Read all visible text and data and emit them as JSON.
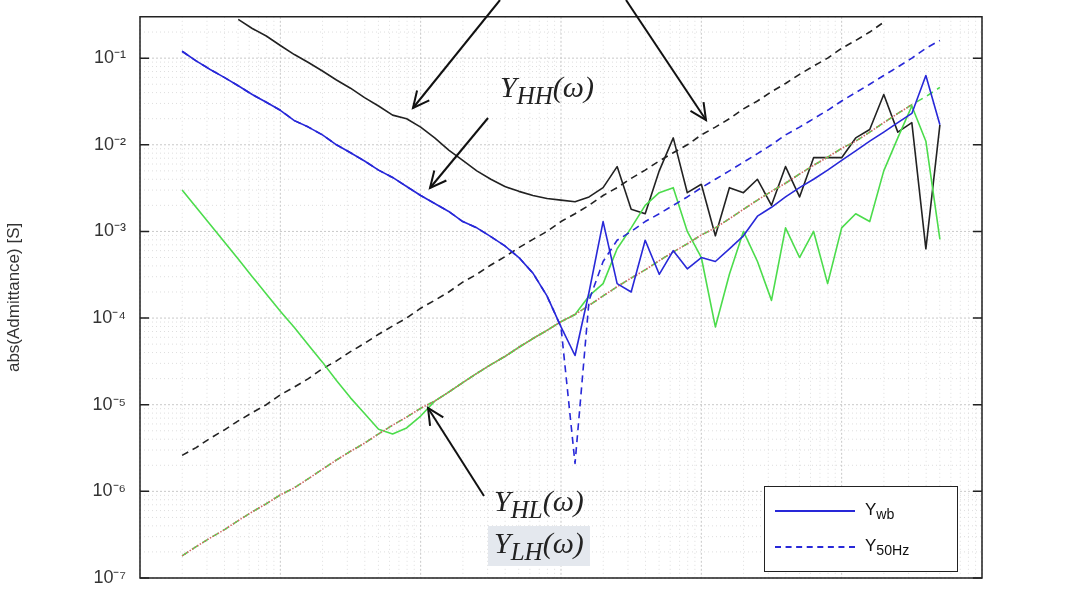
{
  "chart_data": {
    "type": "line",
    "ylabel": "abs(Admittance) [S]",
    "log": "y",
    "grid": true,
    "legend": "bottom right",
    "tick_labels": "y",
    "ylim": [
      1e-07,
      0.3
    ],
    "yticks": [
      {
        "value": 1e-07,
        "label": "10⁻⁷"
      },
      {
        "value": 1e-06,
        "label": "10⁻⁶"
      },
      {
        "value": 1e-05,
        "label": "10⁻⁵"
      },
      {
        "value": 0.0001,
        "label": "10⁻⁴"
      },
      {
        "value": 0.001,
        "label": "10⁻³"
      },
      {
        "value": 0.01,
        "label": "10⁻²"
      },
      {
        "value": 0.1,
        "label": "10⁻¹"
      }
    ],
    "categories": [
      null,
      null,
      null,
      null,
      null,
      null,
      null,
      null,
      null,
      null,
      null,
      null,
      null,
      null,
      null,
      null,
      null,
      null,
      null,
      null,
      null,
      null,
      null,
      null,
      null,
      null,
      null,
      null,
      null,
      null,
      null,
      null,
      null,
      null,
      null,
      null,
      null,
      null,
      null,
      null,
      null,
      null,
      null,
      null,
      null,
      null,
      null,
      null,
      null,
      null,
      null,
      null,
      null,
      null,
      null,
      null,
      null,
      null,
      null,
      null,
      null
    ],
    "annotations": [
      "Y$_{HH}$(ω)",
      "Y$_{HL}$(ω)",
      "Y$_{LH}$(ω)"
    ],
    "series": [
      {
        "color": "#222222",
        "line_style": "dashed",
        "values": [
          null,
          null,
          null,
          2.6e-06,
          3.2e-06,
          4.1e-06,
          5.1e-06,
          6.5e-06,
          8.1e-06,
          1e-05,
          1.3e-05,
          1.6e-05,
          2e-05,
          2.6e-05,
          3.2e-05,
          4.1e-05,
          5.1e-05,
          6.5e-05,
          8.1e-05,
          0.0001,
          0.00013,
          0.00016,
          0.0002,
          0.00026,
          0.00032,
          0.00041,
          0.00051,
          0.00065,
          0.00081,
          0.001,
          0.0013,
          0.0016,
          0.002,
          0.0026,
          0.0032,
          0.0041,
          0.0051,
          0.0065,
          0.0081,
          0.01,
          0.013,
          0.016,
          0.02,
          0.026,
          0.032,
          0.041,
          0.051,
          0.065,
          0.081,
          0.1,
          0.13,
          0.16,
          0.2,
          0.26,
          null,
          null,
          null,
          null,
          null,
          null,
          null
        ]
      },
      {
        "color": "#222222",
        "line_style": "solid",
        "values": [
          null,
          null,
          null,
          null,
          null,
          null,
          null,
          0.28,
          0.22,
          0.18,
          0.14,
          0.11,
          0.089,
          0.071,
          0.056,
          0.045,
          0.035,
          0.028,
          0.022,
          0.02,
          0.016,
          0.012,
          0.0087,
          0.0066,
          0.005,
          0.004,
          0.0033,
          0.0029,
          0.0026,
          0.0024,
          0.0023,
          0.0022,
          0.0025,
          0.0032,
          0.0056,
          0.0018,
          0.0016,
          0.005,
          0.012,
          0.0028,
          0.0035,
          0.00089,
          0.0032,
          0.0028,
          0.004,
          0.002,
          0.0056,
          0.0025,
          0.0071,
          0.0071,
          0.0071,
          0.012,
          0.015,
          0.038,
          0.014,
          0.018,
          0.00063,
          0.017,
          null,
          null,
          null
        ]
      },
      {
        "color": "#4cdc4c",
        "line_style": "solid",
        "values": [
          null,
          null,
          null,
          0.003,
          0.0019,
          0.0012,
          0.00076,
          0.00048,
          0.0003,
          0.00019,
          0.00012,
          7.8e-05,
          4.9e-05,
          3.1e-05,
          1.9e-05,
          1.2e-05,
          7.9e-06,
          5.2e-06,
          4.6e-06,
          5.4e-06,
          7.4e-06,
          1.1e-05,
          1.4e-05,
          1.8e-05,
          2.3e-05,
          2.9e-05,
          3.6e-05,
          4.6e-05,
          5.8e-05,
          7.2e-05,
          9.1e-05,
          0.00011,
          0.00018,
          0.00025,
          0.00063,
          0.0011,
          0.002,
          0.0028,
          0.0032,
          0.001,
          0.0005,
          7.9e-05,
          0.00032,
          0.001,
          0.00045,
          0.00016,
          0.0011,
          0.0005,
          0.001,
          0.00025,
          0.0011,
          0.0016,
          0.0013,
          0.005,
          0.012,
          0.028,
          0.011,
          0.00081,
          null,
          null,
          null
        ]
      },
      {
        "color": "#4cdc4c",
        "line_style": "dashed",
        "values": [
          null,
          null,
          null,
          1.8e-07,
          2.3e-07,
          2.9e-07,
          3.6e-07,
          4.6e-07,
          5.8e-07,
          7.2e-07,
          9.1e-07,
          1.1e-06,
          1.4e-06,
          1.8e-06,
          2.3e-06,
          2.9e-06,
          3.6e-06,
          4.6e-06,
          5.8e-06,
          7.2e-06,
          9.1e-06,
          1.1e-05,
          1.4e-05,
          1.8e-05,
          2.3e-05,
          2.9e-05,
          3.6e-05,
          4.6e-05,
          5.8e-05,
          7.2e-05,
          9.1e-05,
          0.00011,
          0.00014,
          0.00018,
          0.00023,
          0.00029,
          0.00036,
          0.00046,
          0.00058,
          0.00072,
          0.00091,
          0.0011,
          0.0014,
          0.0018,
          0.0023,
          0.0029,
          0.0036,
          0.0046,
          0.0058,
          0.0072,
          0.0091,
          0.011,
          0.014,
          0.018,
          0.023,
          0.029,
          0.036,
          0.046,
          null,
          null,
          null
        ]
      },
      {
        "color": "#d06868",
        "line_style": "dotted",
        "values": [
          null,
          null,
          null,
          1.8e-07,
          2.3e-07,
          2.9e-07,
          3.6e-07,
          4.6e-07,
          5.8e-07,
          7.2e-07,
          9.1e-07,
          1.1e-06,
          1.4e-06,
          1.8e-06,
          2.3e-06,
          2.9e-06,
          3.6e-06,
          4.6e-06,
          5.8e-06,
          7.2e-06,
          9.1e-06,
          1.1e-05,
          1.4e-05,
          1.8e-05,
          2.3e-05,
          2.9e-05,
          3.6e-05,
          4.6e-05,
          5.8e-05,
          7.2e-05,
          9.1e-05,
          0.00011,
          0.00014,
          0.00018,
          0.00023,
          0.00029,
          0.00036,
          0.00046,
          0.00058,
          0.00072,
          0.00091,
          0.0011,
          0.0014,
          0.0018,
          0.0023,
          0.0029,
          0.0036,
          0.0046,
          0.0058,
          0.0072,
          0.0091,
          0.011,
          0.014,
          0.018,
          0.023,
          0.029,
          null,
          null,
          null,
          null,
          null
        ]
      },
      {
        "name": "Y$_{wb}$",
        "color": "#2828d8",
        "line_style": "solid",
        "values": [
          null,
          null,
          null,
          0.12,
          0.093,
          0.074,
          0.06,
          0.048,
          0.038,
          0.031,
          0.025,
          0.019,
          0.016,
          0.013,
          0.01,
          0.0081,
          0.0065,
          0.0051,
          0.0042,
          0.0033,
          0.0026,
          0.0021,
          0.0017,
          0.0013,
          0.0011,
          0.00087,
          0.00068,
          0.0005,
          0.00033,
          0.00018,
          7.9e-05,
          3.7e-05,
          0.0002,
          0.0013,
          0.00025,
          0.0002,
          0.00079,
          0.00032,
          0.0006,
          0.00037,
          0.0005,
          0.00045,
          0.00063,
          0.00089,
          0.0015,
          0.0019,
          0.0025,
          0.0032,
          0.004,
          0.0051,
          0.0066,
          0.0085,
          0.011,
          0.014,
          0.018,
          0.023,
          0.063,
          0.017,
          null,
          null,
          null
        ]
      },
      {
        "name": "Y$_{50Hz}$",
        "color": "#2828d8",
        "line_style": "dashed",
        "values": [
          null,
          null,
          null,
          0.12,
          0.093,
          0.074,
          0.06,
          0.048,
          0.038,
          0.031,
          0.025,
          0.019,
          0.016,
          0.013,
          0.01,
          0.0081,
          0.0065,
          0.0051,
          0.0042,
          0.0033,
          0.0026,
          0.0021,
          0.0017,
          0.0013,
          0.0011,
          0.00087,
          0.00068,
          0.0005,
          0.00033,
          0.00018,
          7.9e-05,
          2.1e-06,
          0.00016,
          0.00045,
          0.00079,
          0.001,
          0.0013,
          0.0016,
          0.002,
          0.0025,
          0.0032,
          0.004,
          0.005,
          0.0063,
          0.0079,
          0.01,
          0.013,
          0.016,
          0.02,
          0.025,
          0.032,
          0.04,
          0.05,
          0.063,
          0.079,
          0.1,
          0.13,
          0.16,
          null,
          null,
          null
        ]
      }
    ]
  }
}
